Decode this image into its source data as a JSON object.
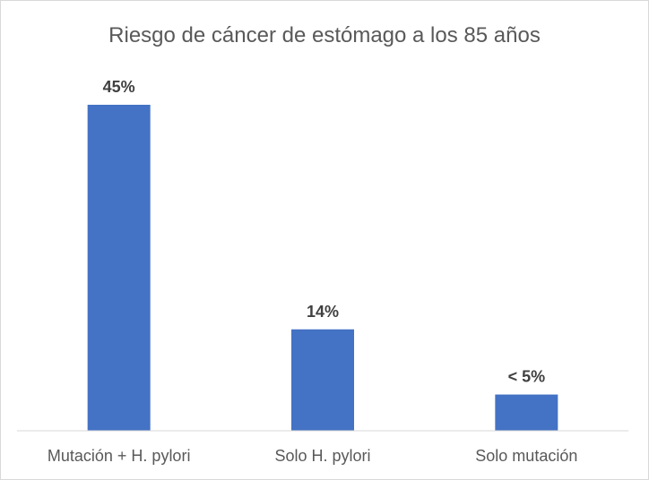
{
  "chart_data": {
    "type": "bar",
    "title": "Riesgo de cáncer de estómago a los 85 años",
    "xlabel": "",
    "ylabel": "",
    "categories": [
      "Mutación + H. pylori",
      "Solo H. pylori",
      "Solo mutación"
    ],
    "values": [
      45,
      14,
      5
    ],
    "data_labels": [
      "45%",
      "14%",
      "< 5%"
    ],
    "unit": "%",
    "ylim": [
      0,
      45
    ],
    "grid": false,
    "legend": "none",
    "bar_color": "#4472C4"
  }
}
